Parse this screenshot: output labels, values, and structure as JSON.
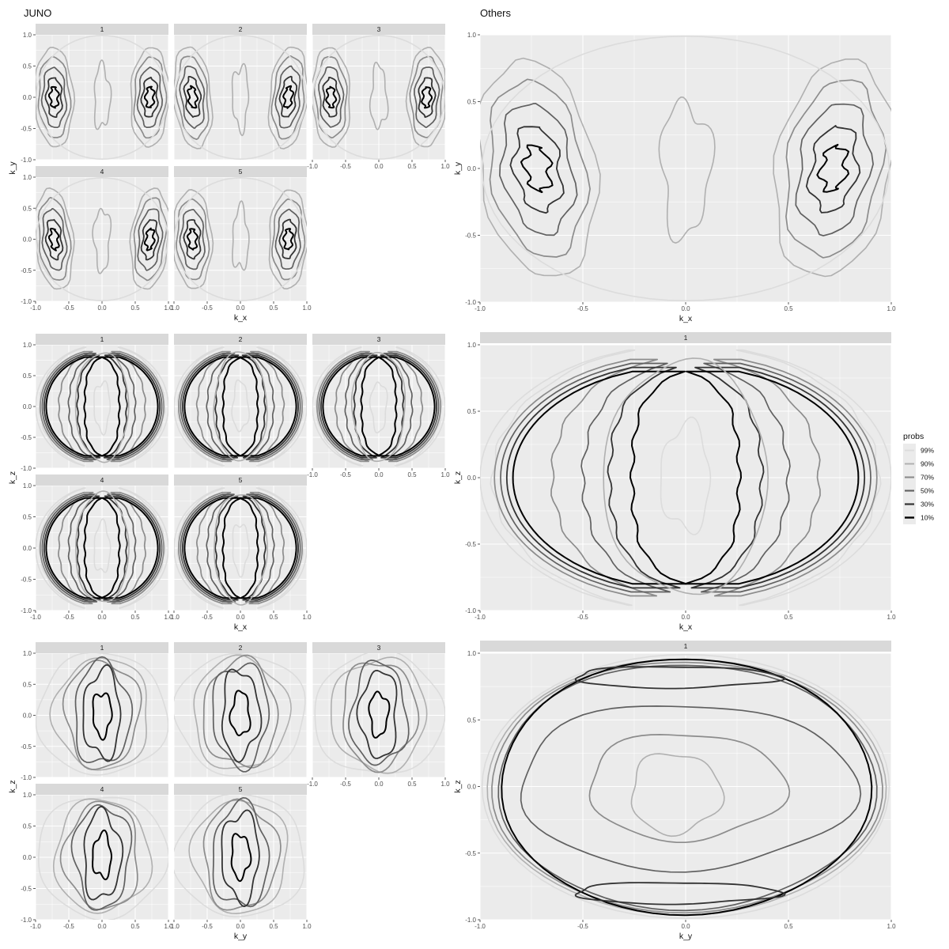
{
  "titles": {
    "left": "JUNO",
    "right": "Others"
  },
  "colors": {
    "panel_bg": "#ebebeb",
    "grid": "#ffffff",
    "strip_bg": "#d9d9d9",
    "levels": {
      "99%": "#dcdcdc",
      "90%": "#b0b0b0",
      "70%": "#8c8c8c",
      "50%": "#606060",
      "30%": "#333333",
      "10%": "#000000"
    }
  },
  "legend": {
    "title": "probs",
    "items": [
      "99%",
      "90%",
      "70%",
      "50%",
      "30%",
      "10%"
    ]
  },
  "chart_data": [
    {
      "type": "contour",
      "group": "JUNO",
      "facets": [
        "1",
        "2",
        "3",
        "4",
        "5"
      ],
      "xlabel": "k_x",
      "ylabel": "k_y",
      "xlim": [
        -1,
        1
      ],
      "ylim": [
        -1,
        1
      ],
      "xticks": [
        "-1.0",
        "-0.5",
        "0.0",
        "0.5",
        "1.0"
      ],
      "yticks": [
        "-1.0",
        "-0.5",
        "0.0",
        "0.5",
        "1.0"
      ],
      "contour_levels": [
        "99%",
        "90%",
        "70%",
        "50%",
        "30%",
        "10%"
      ],
      "pattern": "two-lobes-x"
    },
    {
      "type": "contour",
      "group": "Others",
      "facets": [],
      "xlabel": "k_x",
      "ylabel": "k_y",
      "xlim": [
        -1,
        1
      ],
      "ylim": [
        -1,
        1
      ],
      "xticks": [
        "-1.0",
        "-0.5",
        "0.0",
        "0.5",
        "1.0"
      ],
      "yticks": [
        "-1.0",
        "-0.5",
        "0.0",
        "0.5",
        "1.0"
      ],
      "contour_levels": [
        "99%",
        "90%",
        "70%",
        "50%",
        "30%",
        "10%"
      ],
      "pattern": "two-lobes-x"
    },
    {
      "type": "contour",
      "group": "JUNO",
      "facets": [
        "1",
        "2",
        "3",
        "4",
        "5"
      ],
      "xlabel": "k_x",
      "ylabel": "k_z",
      "xlim": [
        -1,
        1
      ],
      "ylim": [
        -1,
        1
      ],
      "xticks": [
        "-1.0",
        "-0.5",
        "0.0",
        "0.5",
        "1.0"
      ],
      "yticks": [
        "-1.0",
        "-0.5",
        "0.0",
        "0.5",
        "1.0"
      ],
      "contour_levels": [
        "99%",
        "90%",
        "70%",
        "50%",
        "30%",
        "10%"
      ],
      "pattern": "crescents"
    },
    {
      "type": "contour",
      "group": "Others",
      "facets": [
        "1"
      ],
      "xlabel": "k_x",
      "ylabel": "k_z",
      "xlim": [
        -1,
        1
      ],
      "ylim": [
        -1,
        1
      ],
      "xticks": [
        "-1.0",
        "-0.5",
        "0.0",
        "0.5",
        "1.0"
      ],
      "yticks": [
        "-1.0",
        "-0.5",
        "0.0",
        "0.5",
        "1.0"
      ],
      "contour_levels": [
        "99%",
        "90%",
        "70%",
        "50%",
        "30%",
        "10%"
      ],
      "pattern": "crescents"
    },
    {
      "type": "contour",
      "group": "JUNO",
      "facets": [
        "1",
        "2",
        "3",
        "4",
        "5"
      ],
      "xlabel": "k_y",
      "ylabel": "k_z",
      "xlim": [
        -1,
        1
      ],
      "ylim": [
        -1,
        1
      ],
      "xticks": [
        "-1.0",
        "-0.5",
        "0.0",
        "0.5",
        "1.0"
      ],
      "yticks": [
        "-1.0",
        "-0.5",
        "0.0",
        "0.5",
        "1.0"
      ],
      "contour_levels": [
        "99%",
        "90%",
        "70%",
        "50%",
        "30%",
        "10%"
      ],
      "pattern": "central-blob"
    },
    {
      "type": "contour",
      "group": "Others",
      "facets": [
        "1"
      ],
      "xlabel": "k_y",
      "ylabel": "k_z",
      "xlim": [
        -1,
        1
      ],
      "ylim": [
        -1,
        1
      ],
      "xticks": [
        "-1.0",
        "-0.5",
        "0.0",
        "0.5",
        "1.0"
      ],
      "yticks": [
        "-1.0",
        "-0.5",
        "0.0",
        "0.5",
        "1.0"
      ],
      "contour_levels": [
        "99%",
        "90%",
        "70%",
        "50%",
        "30%",
        "10%"
      ],
      "pattern": "ring"
    }
  ]
}
